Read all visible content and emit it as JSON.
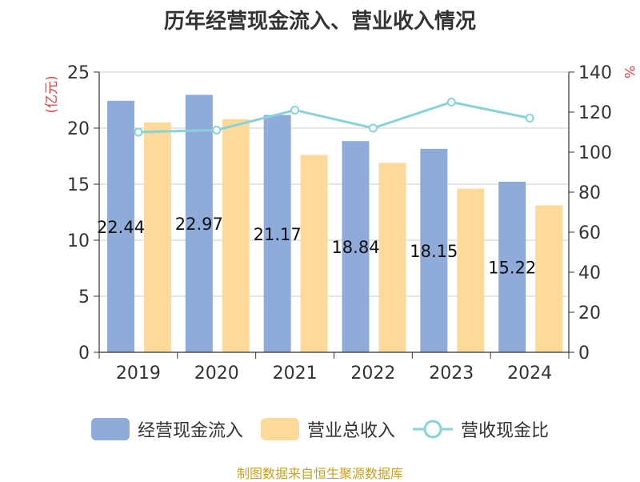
{
  "chart_data": {
    "type": "bar",
    "title": "历年经营现金流入、营业收入情况",
    "categories": [
      "2019",
      "2020",
      "2021",
      "2022",
      "2023",
      "2024"
    ],
    "series": [
      {
        "name": "经营现金流入",
        "type": "bar",
        "axis": "left",
        "color": "#8eabd9",
        "values": [
          22.44,
          22.97,
          21.17,
          18.84,
          18.15,
          15.22
        ],
        "labels": [
          "22.44",
          "22.97",
          "21.17",
          "18.84",
          "18.15",
          "15.22"
        ]
      },
      {
        "name": "营业总收入",
        "type": "bar",
        "axis": "left",
        "color": "#fdd99a",
        "values": [
          20.5,
          20.8,
          17.6,
          16.9,
          14.6,
          13.1
        ]
      },
      {
        "name": "营收现金比",
        "type": "line",
        "axis": "right",
        "color": "#88d3d8",
        "values": [
          110,
          111,
          121,
          112,
          125,
          117
        ]
      }
    ],
    "ylabel_left": "(亿元)",
    "ylabel_right": "%",
    "ylim_left": [
      0,
      25
    ],
    "ylim_right": [
      0,
      140
    ],
    "yticks_left": [
      "0",
      "5",
      "10",
      "15",
      "20",
      "25"
    ],
    "yticks_right": [
      "0",
      "20",
      "40",
      "60",
      "80",
      "100",
      "120",
      "140"
    ],
    "grid": true,
    "legend_position": "bottom"
  },
  "source": "制图数据来自恒生聚源数据库"
}
